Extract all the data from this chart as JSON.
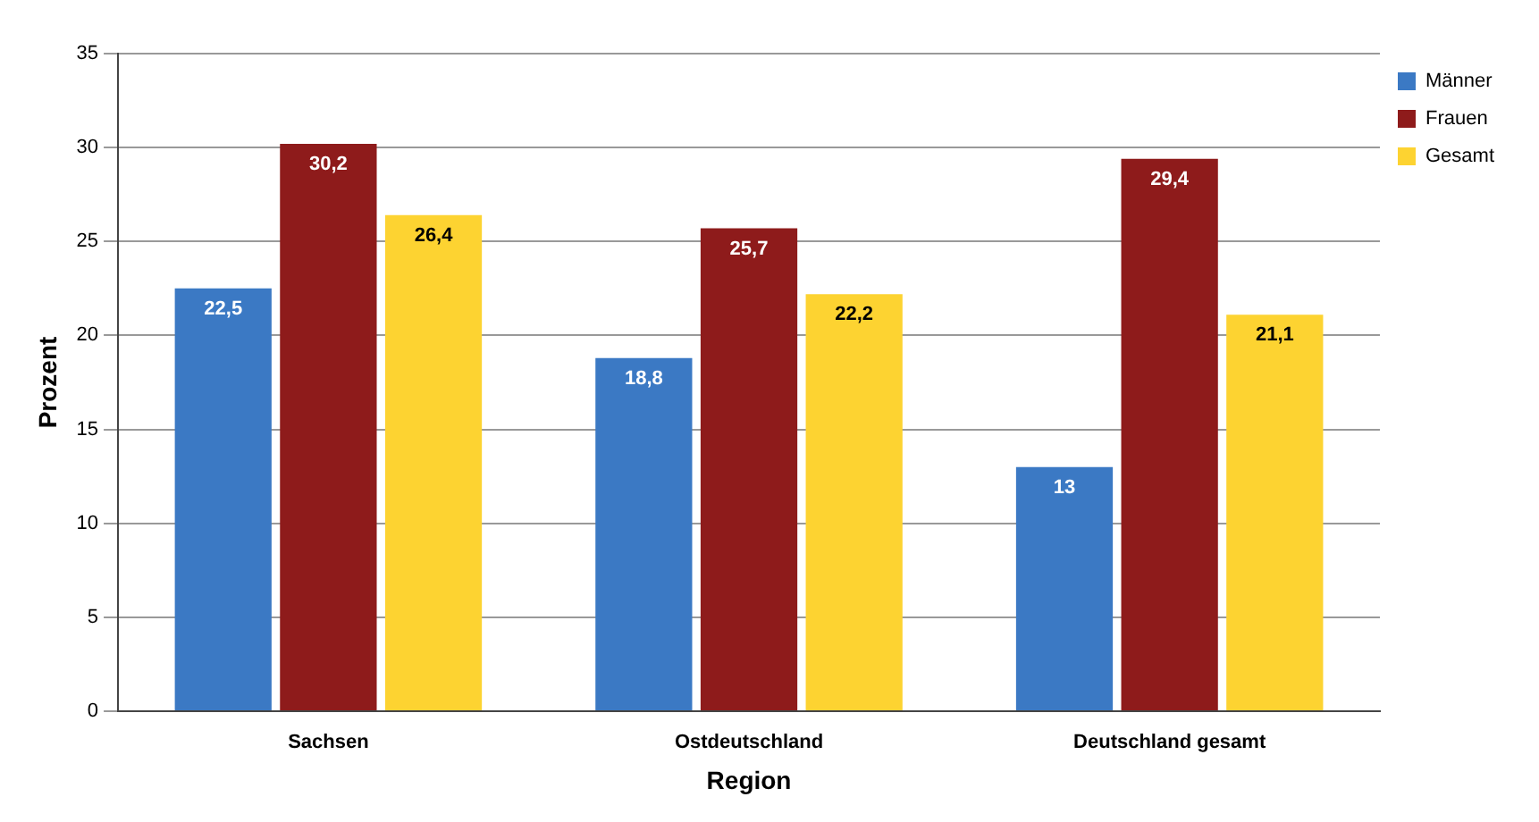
{
  "chart_data": {
    "type": "bar",
    "xlabel": "Region",
    "ylabel": "Prozent",
    "categories": [
      "Sachsen",
      "Ostdeutschland",
      "Deutschland gesamt"
    ],
    "series": [
      {
        "name": "Männer",
        "color": "#3b79c4",
        "values": [
          22.5,
          18.8,
          13
        ],
        "value_labels": [
          "22,5",
          "18,8",
          "13"
        ]
      },
      {
        "name": "Frauen",
        "color": "#8e1b1b",
        "values": [
          30.2,
          25.7,
          29.4
        ],
        "value_labels": [
          "30,2",
          "25,7",
          "29,4"
        ]
      },
      {
        "name": "Gesamt",
        "color": "#fdd331",
        "values": [
          26.4,
          22.2,
          21.1
        ],
        "value_labels": [
          "26,4",
          "22,2",
          "21,1"
        ]
      }
    ],
    "ylim": [
      0,
      35
    ],
    "yticks": [
      0,
      5,
      10,
      15,
      20,
      25,
      30,
      35
    ],
    "grid": "y",
    "legend": "top right"
  }
}
